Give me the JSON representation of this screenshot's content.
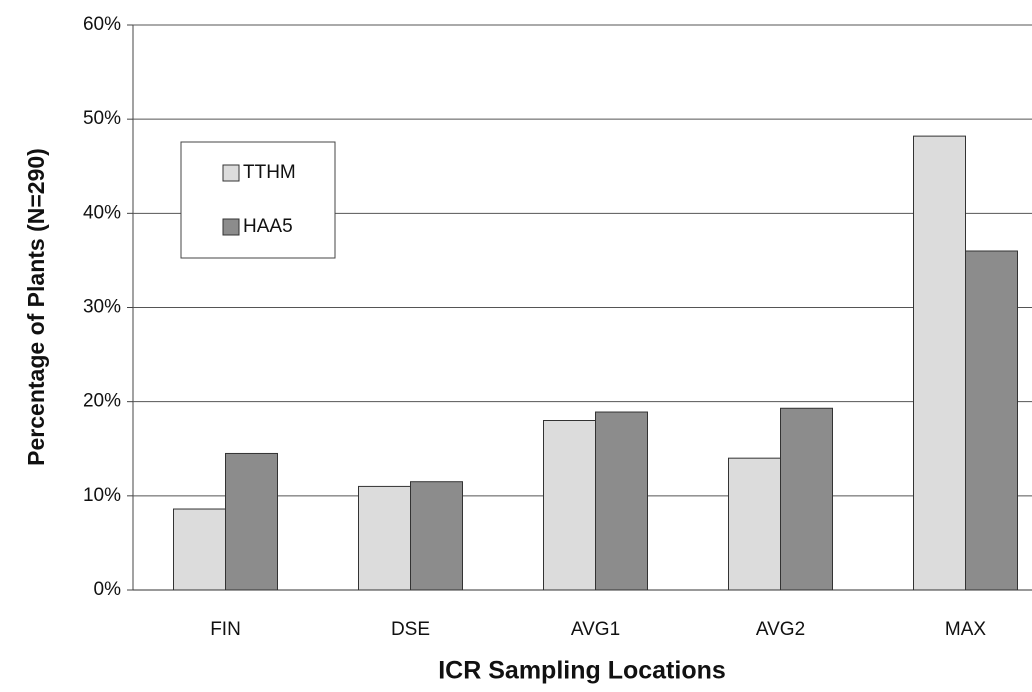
{
  "chart_data": {
    "type": "bar",
    "xlabel": "ICR Sampling Locations",
    "ylabel": "Percentage of Plants (N=290)",
    "categories": [
      "FIN",
      "DSE",
      "AVG1",
      "AVG2",
      "MAX"
    ],
    "series": [
      {
        "name": "TTHM",
        "color": "#dcdcdc",
        "values": [
          8.6,
          11.0,
          18.0,
          14.0,
          48.2
        ]
      },
      {
        "name": "HAA5",
        "color": "#8c8c8c",
        "values": [
          14.5,
          11.5,
          18.9,
          19.3,
          36.0
        ]
      }
    ],
    "ylim": [
      0,
      60
    ],
    "yticks": [
      {
        "value": 0,
        "label": "0%"
      },
      {
        "value": 10,
        "label": "10%"
      },
      {
        "value": 20,
        "label": "20%"
      },
      {
        "value": 30,
        "label": "30%"
      },
      {
        "value": 40,
        "label": "40%"
      },
      {
        "value": 50,
        "label": "50%"
      },
      {
        "value": 60,
        "label": "60%"
      }
    ],
    "grid": true,
    "legend": "upper left"
  }
}
